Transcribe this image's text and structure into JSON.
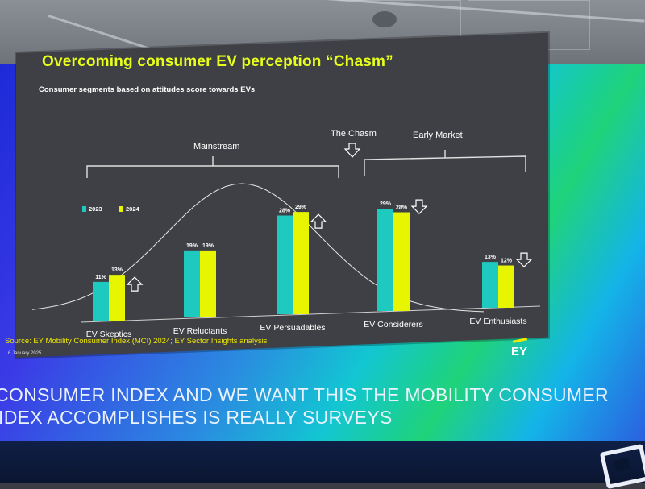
{
  "slide": {
    "title": "Overcoming consumer EV perception “Chasm”",
    "subtitle": "Consumer segments based on attitudes score towards EVs",
    "brackets": {
      "mainstream": "Mainstream",
      "chasm": "The Chasm",
      "early_market": "Early Market"
    },
    "source": "Source: EY Mobility Consumer Index (MCI) 2024; EY Sector Insights analysis",
    "date": "6 January 2025",
    "logo": "EY"
  },
  "chart_data": {
    "type": "bar",
    "title": "Overcoming consumer EV perception “Chasm”",
    "categories": [
      "EV Skeptics",
      "EV Reluctants",
      "EV Persuadables",
      "EV Considerers",
      "EV Enthusiasts"
    ],
    "series": [
      {
        "name": "2023",
        "values": [
          11,
          19,
          28,
          29,
          13
        ],
        "color": "#1ec9c0"
      },
      {
        "name": "2024",
        "values": [
          13,
          19,
          29,
          28,
          12
        ],
        "color": "#e8f500"
      }
    ],
    "data_labels": [
      [
        "11%",
        "19%",
        "28%",
        "29%",
        "13%"
      ],
      [
        "13%",
        "19%",
        "29%",
        "28%",
        "12%"
      ]
    ],
    "trend": [
      "up",
      "none",
      "up",
      "down",
      "down"
    ],
    "ylim": [
      0,
      32
    ],
    "xlabel": "",
    "ylabel": "",
    "legend": "top-left"
  },
  "caption": {
    "line1": "CONSUMER INDEX AND WE WANT THIS THE MOBILITY CONSUMER",
    "line2": "IDEX ACCOMPLISHES IS REALLY SURVEYS"
  }
}
